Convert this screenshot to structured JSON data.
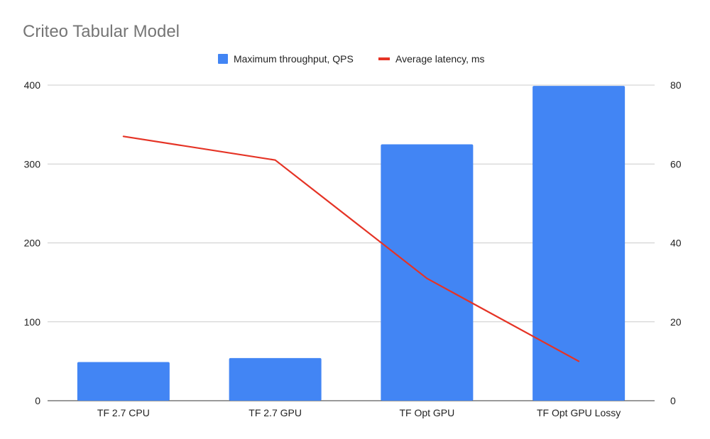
{
  "chart_data": {
    "type": "bar",
    "title": "Criteo Tabular Model",
    "categories": [
      "TF 2.7 CPU",
      "TF 2.7 GPU",
      "TF Opt GPU",
      "TF Opt GPU Lossy"
    ],
    "series": [
      {
        "name": "Maximum throughput, QPS",
        "type": "bar",
        "axis": "left",
        "color": "#4285f4",
        "values": [
          49,
          54,
          325,
          399
        ]
      },
      {
        "name": "Average latency, ms",
        "type": "line",
        "axis": "right",
        "color": "#e53325",
        "values": [
          67,
          61,
          31,
          10
        ]
      }
    ],
    "y_left": {
      "range": [
        0,
        400
      ],
      "ticks": [
        "0",
        "100",
        "200",
        "300",
        "400"
      ]
    },
    "y_right": {
      "range": [
        0,
        80
      ],
      "ticks": [
        "0",
        "20",
        "40",
        "60",
        "80"
      ]
    },
    "grid": true,
    "legend_position": "top"
  }
}
